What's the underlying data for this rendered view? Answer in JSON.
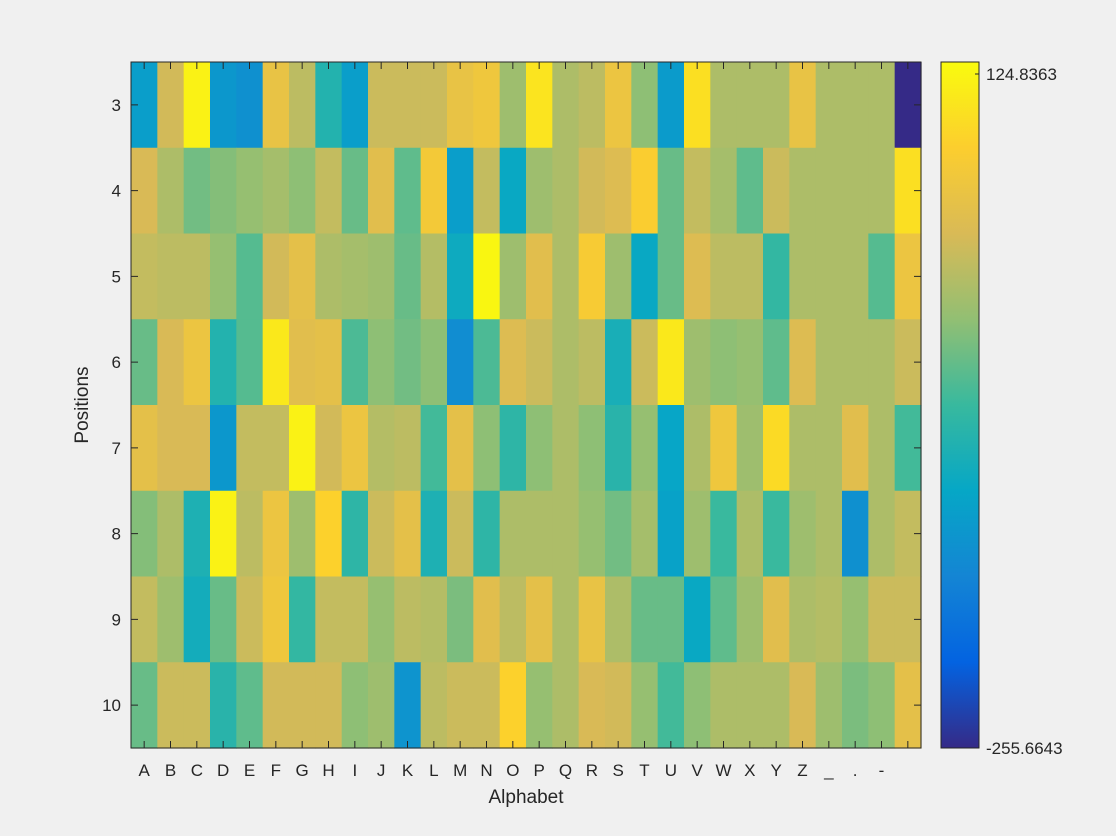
{
  "chart_data": {
    "type": "heatmap",
    "title": "",
    "xlabel": "Alphabet",
    "ylabel": "Positions",
    "x_categories": [
      "A",
      "B",
      "C",
      "D",
      "E",
      "F",
      "G",
      "H",
      "I",
      "J",
      "K",
      "L",
      "M",
      "N",
      "O",
      "P",
      "Q",
      "R",
      "S",
      "T",
      "U",
      "V",
      "W",
      "X",
      "Y",
      "Z",
      "_",
      ".",
      "-",
      ""
    ],
    "y_categories": [
      "3",
      "4",
      "5",
      "6",
      "7",
      "8",
      "9",
      "10"
    ],
    "colorbar": {
      "min": -255.6643,
      "max": 124.8363,
      "min_label": "-255.6643",
      "max_label": "124.8363",
      "colormap": "parula"
    },
    "values": [
      [
        -125,
        25,
        115,
        -135,
        -145,
        50,
        10,
        -85,
        -125,
        20,
        20,
        20,
        50,
        60,
        -10,
        100,
        0,
        10,
        55,
        -20,
        -130,
        95,
        0,
        0,
        0,
        50,
        0,
        0,
        0,
        -255.6643
      ],
      [
        30,
        0,
        -35,
        -25,
        -15,
        -5,
        -20,
        15,
        -40,
        40,
        -45,
        65,
        -125,
        15,
        -110,
        -10,
        0,
        25,
        35,
        75,
        -40,
        15,
        -5,
        -45,
        20,
        0,
        0,
        0,
        0,
        95
      ],
      [
        15,
        10,
        10,
        -15,
        -50,
        25,
        45,
        0,
        -5,
        -10,
        -40,
        5,
        -105,
        120,
        -10,
        40,
        0,
        70,
        -10,
        -110,
        -40,
        35,
        10,
        10,
        -70,
        0,
        0,
        0,
        -50,
        55
      ],
      [
        -40,
        30,
        55,
        -85,
        -50,
        105,
        40,
        45,
        -55,
        -20,
        -35,
        -20,
        -150,
        -55,
        35,
        20,
        0,
        10,
        -95,
        20,
        105,
        -10,
        -20,
        -15,
        -45,
        35,
        0,
        0,
        0,
        20
      ],
      [
        45,
        30,
        30,
        -135,
        15,
        15,
        115,
        25,
        55,
        5,
        10,
        -60,
        45,
        -20,
        -75,
        -20,
        0,
        -20,
        -80,
        -15,
        -115,
        0,
        60,
        -10,
        90,
        0,
        0,
        40,
        0,
        -60
      ],
      [
        -25,
        0,
        -90,
        115,
        10,
        55,
        -10,
        80,
        -75,
        20,
        45,
        -90,
        20,
        -75,
        0,
        0,
        0,
        -15,
        -35,
        -5,
        -120,
        -10,
        -65,
        0,
        -65,
        -10,
        0,
        -145,
        0,
        15
      ],
      [
        15,
        -10,
        -100,
        -40,
        20,
        60,
        -70,
        15,
        15,
        -15,
        10,
        5,
        -30,
        40,
        10,
        45,
        0,
        50,
        0,
        -40,
        -40,
        -110,
        -45,
        -10,
        40,
        0,
        5,
        -15,
        20,
        20
      ],
      [
        -40,
        20,
        20,
        -80,
        -45,
        25,
        25,
        25,
        -20,
        -10,
        -140,
        10,
        20,
        20,
        80,
        -15,
        0,
        30,
        25,
        -15,
        -60,
        -20,
        0,
        0,
        0,
        30,
        -10,
        -30,
        -20,
        45
      ]
    ]
  }
}
